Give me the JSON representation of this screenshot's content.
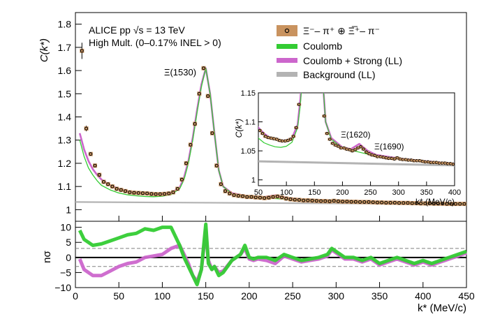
{
  "chart_data": {
    "type": "scatter",
    "main": {
      "ylabel": "C(k*)",
      "ylim": [
        0.95,
        1.85
      ],
      "yticks": [
        "1",
        "1.1",
        "1.2",
        "1.3",
        "1.4",
        "1.5",
        "1.6",
        "1.7",
        "1.8"
      ],
      "yticks_v": [
        1,
        1.1,
        1.2,
        1.3,
        1.4,
        1.5,
        1.6,
        1.7,
        1.8
      ],
      "xlim": [
        0,
        450
      ],
      "xticks": [
        "0",
        "50",
        "100",
        "150",
        "200",
        "250",
        "300",
        "350",
        "400",
        "450"
      ],
      "xticks_v": [
        0,
        50,
        100,
        150,
        200,
        250,
        300,
        350,
        400,
        450
      ],
      "xlabel": "k* (MeV/c)",
      "annotations": {
        "experiment": "ALICE pp √s = 13 TeV",
        "trigger": "High Mult. (0–0.17% INEL > 0)",
        "resonance": "Ξ(1530)"
      },
      "legend": {
        "position": "top-right",
        "entries": [
          "Ξ⁻– π⁺ ⊕ Ξ̅⁺– π⁻",
          "Coulomb",
          "Coulomb + Strong (LL)",
          "Background (LL)"
        ]
      },
      "series": [
        {
          "name": "Ξ⁻– π⁺ ⊕ Ξ̅⁺– π⁻",
          "x": [
            7.5,
            12.5,
            17.5,
            22.5,
            27.5,
            32.5,
            37.5,
            42.5,
            47.5,
            52.5,
            57.5,
            62.5,
            67.5,
            72.5,
            77.5,
            82.5,
            87.5,
            92.5,
            97.5,
            102.5,
            107.5,
            112.5,
            117.5,
            122.5,
            127.5,
            132.5,
            137.5,
            142.5,
            147.5,
            152.5,
            157.5,
            162.5,
            167.5,
            172.5,
            177.5,
            182.5,
            187.5,
            192.5,
            197.5,
            202.5,
            207.5,
            212.5,
            217.5,
            222.5,
            227.5,
            232.5,
            237.5,
            242.5,
            247.5,
            252.5,
            257.5,
            262.5,
            267.5,
            272.5,
            277.5,
            282.5,
            287.5,
            292.5,
            297.5,
            302.5,
            307.5,
            312.5,
            317.5,
            322.5,
            327.5,
            332.5,
            337.5,
            342.5,
            347.5,
            352.5,
            357.5,
            362.5,
            367.5,
            372.5,
            377.5,
            382.5,
            387.5,
            392.5,
            397.5,
            402.5,
            407.5,
            412.5,
            417.5,
            422.5,
            427.5,
            432.5,
            437.5,
            442.5,
            447.5
          ],
          "y": [
            1.685,
            1.35,
            1.24,
            1.19,
            1.15,
            1.12,
            1.11,
            1.1,
            1.09,
            1.085,
            1.08,
            1.075,
            1.073,
            1.072,
            1.071,
            1.07,
            1.068,
            1.067,
            1.067,
            1.068,
            1.07,
            1.075,
            1.09,
            1.13,
            1.2,
            1.28,
            1.37,
            1.5,
            1.61,
            1.49,
            1.33,
            1.19,
            1.11,
            1.08,
            1.07,
            1.063,
            1.06,
            1.058,
            1.055,
            1.055,
            1.053,
            1.052,
            1.05,
            1.052,
            1.055,
            1.057,
            1.053,
            1.048,
            1.045,
            1.043,
            1.042,
            1.04,
            1.04,
            1.039,
            1.038,
            1.037,
            1.037,
            1.036,
            1.038,
            1.036,
            1.035,
            1.035,
            1.034,
            1.034,
            1.033,
            1.033,
            1.033,
            1.032,
            1.031,
            1.031,
            1.03,
            1.03,
            1.03,
            1.029,
            1.029,
            1.029,
            1.028,
            1.028,
            1.027,
            1.027,
            1.027,
            1.026,
            1.026,
            1.026,
            1.025,
            1.025,
            1.025,
            1.025,
            1.025
          ]
        },
        {
          "name": "Coulomb",
          "x": [
            5,
            10,
            15,
            20,
            25,
            30,
            40,
            50,
            60,
            70,
            80,
            90,
            100,
            110,
            120,
            125,
            130,
            135,
            140,
            145,
            150,
            155,
            160,
            165,
            170,
            180,
            200,
            250,
            300,
            350,
            400,
            450
          ],
          "y": [
            1.3,
            1.23,
            1.18,
            1.15,
            1.125,
            1.105,
            1.085,
            1.072,
            1.064,
            1.06,
            1.057,
            1.056,
            1.058,
            1.065,
            1.09,
            1.13,
            1.2,
            1.3,
            1.42,
            1.53,
            1.61,
            1.5,
            1.33,
            1.17,
            1.1,
            1.07,
            1.055,
            1.043,
            1.037,
            1.032,
            1.028,
            1.026
          ]
        },
        {
          "name": "Coulomb + Strong (LL)",
          "x": [
            5,
            10,
            15,
            20,
            25,
            30,
            40,
            50,
            60,
            70,
            80,
            90,
            100,
            110,
            120,
            125,
            130,
            135,
            140,
            145,
            150,
            155,
            160,
            165,
            170,
            180,
            200,
            215,
            230,
            245,
            260,
            300,
            350,
            400,
            450
          ],
          "y": [
            1.33,
            1.26,
            1.21,
            1.175,
            1.15,
            1.13,
            1.105,
            1.09,
            1.08,
            1.073,
            1.07,
            1.068,
            1.068,
            1.072,
            1.095,
            1.14,
            1.21,
            1.31,
            1.43,
            1.54,
            1.61,
            1.5,
            1.33,
            1.17,
            1.1,
            1.072,
            1.056,
            1.053,
            1.062,
            1.05,
            1.043,
            1.037,
            1.032,
            1.028,
            1.026
          ]
        },
        {
          "name": "Background (LL)",
          "x": [
            0,
            450
          ],
          "y": [
            1.033,
            1.024
          ]
        }
      ]
    },
    "inset": {
      "ylabel": "C(k*)",
      "xlabel": "k* (MeV/c)",
      "xlim": [
        50,
        400
      ],
      "ylim": [
        0.99,
        1.15
      ],
      "xticks": [
        "50",
        "100",
        "150",
        "200",
        "250",
        "300",
        "350",
        "400"
      ],
      "xticks_v": [
        50,
        100,
        150,
        200,
        250,
        300,
        350,
        400
      ],
      "yticks": [
        "1",
        "1.05",
        "1.1",
        "1.15"
      ],
      "yticks_v": [
        1,
        1.05,
        1.1,
        1.15
      ],
      "annotations": [
        "Ξ(1620)",
        "Ξ(1690)"
      ]
    },
    "residual": {
      "ylabel": "nσ",
      "ylim": [
        -10,
        12
      ],
      "yticks": [
        "10",
        "5",
        "0",
        "−5",
        "−10"
      ],
      "yticks_v": [
        10,
        5,
        0,
        -5,
        -10
      ],
      "dashed_lines": [
        3,
        -3
      ],
      "series": [
        {
          "name": "Coulomb",
          "x": [
            5,
            10,
            20,
            30,
            40,
            50,
            60,
            70,
            80,
            90,
            100,
            110,
            120,
            125,
            130,
            135,
            140,
            145,
            150,
            153,
            157,
            160,
            165,
            170,
            180,
            190,
            195,
            200,
            205,
            210,
            220,
            230,
            240,
            250,
            260,
            270,
            280,
            290,
            295,
            300,
            310,
            320,
            330,
            340,
            350,
            360,
            370,
            380,
            390,
            400,
            410,
            420,
            430,
            440,
            450
          ],
          "y": [
            9,
            6,
            4,
            4.5,
            5.5,
            6.5,
            7.5,
            8,
            9.5,
            9,
            10,
            10,
            4,
            0,
            -3,
            -6,
            -9,
            -4,
            11,
            -2,
            -4,
            -3,
            -6,
            -5,
            -1,
            1,
            4,
            0,
            -0.5,
            0,
            0,
            -1,
            1,
            0,
            -1,
            -0.5,
            0,
            1,
            3,
            2,
            0,
            0,
            -1,
            0,
            -2,
            -1,
            0,
            -1,
            -2,
            -1,
            -2,
            -1,
            0,
            1,
            2
          ]
        },
        {
          "name": "Coulomb + Strong (LL)",
          "x": [
            5,
            10,
            20,
            30,
            40,
            50,
            60,
            70,
            80,
            90,
            100,
            110,
            120,
            125,
            130,
            135,
            140,
            145,
            150,
            153,
            157,
            160,
            165,
            170,
            180,
            190,
            195,
            200,
            205,
            210,
            220,
            230,
            240,
            250,
            260,
            270,
            280,
            290,
            295,
            300,
            310,
            320,
            330,
            340,
            350,
            360,
            370,
            380,
            390,
            400,
            410,
            420,
            430,
            440,
            450
          ],
          "y": [
            -0.5,
            -4,
            -6,
            -6,
            -4.5,
            -3,
            -2,
            -1.5,
            0,
            0.5,
            1,
            3,
            4,
            1,
            -2,
            -6,
            -8,
            -4,
            9,
            -1,
            -4,
            -3,
            -5,
            -4.5,
            -1,
            1,
            3,
            -0.5,
            -1,
            -0.5,
            -1,
            -2,
            0.5,
            -0.5,
            -1.5,
            -1,
            -0.5,
            0.5,
            2.5,
            1.5,
            -0.5,
            -0.5,
            -1.5,
            -0.5,
            -2.5,
            -1.5,
            -0.5,
            -1.5,
            -2.5,
            -1.5,
            -2.5,
            -1.5,
            -0.5,
            0.5,
            1.5
          ]
        }
      ]
    },
    "colors": {
      "data_fill": "#c9935f",
      "coulomb": "#33cc33",
      "strong": "#cc66cc",
      "background": "#b3b3b3",
      "dashed": "#808080"
    }
  }
}
